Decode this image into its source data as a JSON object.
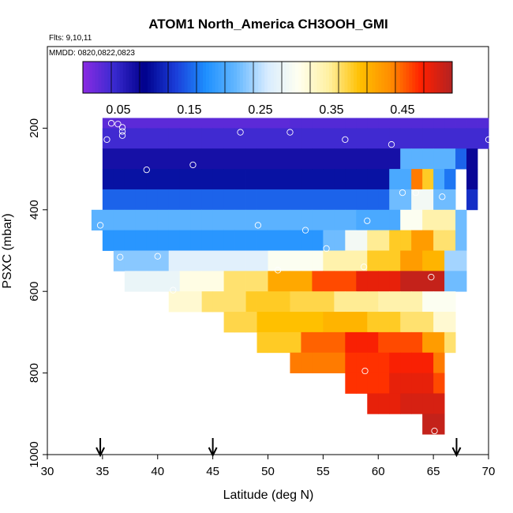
{
  "chart_data": {
    "type": "heatmap",
    "title": "ATOM1 North_America CH3OOH_GMI",
    "annotations": {
      "flights": "Flts: 9,10,11",
      "dates": "MMDD: 0820,0822,0823"
    },
    "xlabel": "Latitude (deg N)",
    "ylabel": "PSXC (mbar)",
    "xlim": [
      30,
      70
    ],
    "ylim": [
      1000,
      0
    ],
    "x_ticks": [
      30,
      35,
      40,
      45,
      50,
      55,
      60,
      65,
      70
    ],
    "y_ticks": [
      200,
      400,
      600,
      800,
      1000
    ],
    "colorbar": {
      "range": [
        0,
        0.52
      ],
      "tick_values": [
        0.05,
        0.15,
        0.25,
        0.35,
        0.45
      ],
      "tick_labels": [
        "0.05",
        "0.15",
        "0.25",
        "0.35",
        "0.45"
      ],
      "colors": [
        "#8a2be2",
        "#3a2ad0",
        "#00008b",
        "#1a3cd8",
        "#1e90ff",
        "#66b8ff",
        "#d8ecff",
        "#fffff0",
        "#fff0a0",
        "#ffc000",
        "#ff8c00",
        "#ff2000",
        "#b22222"
      ]
    },
    "lat_bin_deg": 1,
    "pressure_bin_mbar": 50,
    "rows": [
      {
        "p": 200,
        "segments": [
          [
            35,
            52,
            0.025
          ],
          [
            52,
            70,
            0.03
          ]
        ]
      },
      {
        "p": 225,
        "segments": [
          [
            35,
            70,
            0.04
          ]
        ]
      },
      {
        "p": 275,
        "segments": [
          [
            35,
            62,
            0.07
          ],
          [
            62,
            67,
            0.21
          ],
          [
            67,
            68,
            0.15
          ],
          [
            68,
            69,
            0.08
          ]
        ]
      },
      {
        "p": 325,
        "segments": [
          [
            35,
            61,
            0.1
          ],
          [
            61,
            63,
            0.2
          ],
          [
            63,
            64,
            0.44
          ],
          [
            64,
            65,
            0.38
          ],
          [
            65,
            66,
            0.2
          ],
          [
            66,
            67,
            0.16
          ],
          [
            68,
            69,
            0.08
          ]
        ]
      },
      {
        "p": 375,
        "segments": [
          [
            35,
            61,
            0.15
          ],
          [
            61,
            63,
            0.22
          ],
          [
            63,
            65,
            0.29
          ],
          [
            65,
            67,
            0.22
          ],
          [
            68,
            69,
            0.12
          ]
        ]
      },
      {
        "p": 425,
        "segments": [
          [
            34,
            58,
            0.21
          ],
          [
            58,
            62,
            0.2
          ],
          [
            62,
            64,
            0.3
          ],
          [
            64,
            67,
            0.34
          ],
          [
            67,
            68,
            0.22
          ]
        ]
      },
      {
        "p": 475,
        "segments": [
          [
            35,
            55,
            0.18
          ],
          [
            55,
            57,
            0.22
          ],
          [
            57,
            59,
            0.29
          ],
          [
            59,
            61,
            0.35
          ],
          [
            61,
            63,
            0.38
          ],
          [
            63,
            65,
            0.42
          ],
          [
            65,
            67,
            0.36
          ],
          [
            67,
            68,
            0.22
          ]
        ]
      },
      {
        "p": 525,
        "segments": [
          [
            36,
            41,
            0.23
          ],
          [
            41,
            50,
            0.27
          ],
          [
            50,
            55,
            0.3
          ],
          [
            55,
            59,
            0.34
          ],
          [
            59,
            62,
            0.38
          ],
          [
            62,
            64,
            0.42
          ],
          [
            64,
            66,
            0.4
          ],
          [
            66,
            68,
            0.24
          ]
        ]
      },
      {
        "p": 575,
        "segments": [
          [
            37,
            42,
            0.28
          ],
          [
            42,
            46,
            0.31
          ],
          [
            46,
            50,
            0.36
          ],
          [
            50,
            54,
            0.41
          ],
          [
            54,
            58,
            0.46
          ],
          [
            58,
            62,
            0.49
          ],
          [
            62,
            66,
            0.51
          ],
          [
            66,
            68,
            0.22
          ]
        ]
      },
      {
        "p": 625,
        "segments": [
          [
            41,
            44,
            0.32
          ],
          [
            44,
            48,
            0.36
          ],
          [
            48,
            52,
            0.38
          ],
          [
            52,
            56,
            0.37
          ],
          [
            56,
            60,
            0.35
          ],
          [
            60,
            64,
            0.34
          ],
          [
            64,
            67,
            0.3
          ]
        ]
      },
      {
        "p": 675,
        "segments": [
          [
            46,
            49,
            0.37
          ],
          [
            49,
            55,
            0.39
          ],
          [
            55,
            59,
            0.4
          ],
          [
            59,
            62,
            0.38
          ],
          [
            62,
            65,
            0.36
          ],
          [
            65,
            67,
            0.32
          ]
        ]
      },
      {
        "p": 725,
        "segments": [
          [
            49,
            53,
            0.38
          ],
          [
            53,
            57,
            0.45
          ],
          [
            57,
            60,
            0.48
          ],
          [
            60,
            64,
            0.46
          ],
          [
            64,
            66,
            0.42
          ],
          [
            66,
            67,
            0.36
          ]
        ]
      },
      {
        "p": 775,
        "segments": [
          [
            52,
            57,
            0.44
          ],
          [
            57,
            61,
            0.47
          ],
          [
            61,
            65,
            0.48
          ],
          [
            65,
            66,
            0.44
          ]
        ]
      },
      {
        "p": 825,
        "segments": [
          [
            57,
            61,
            0.47
          ],
          [
            61,
            65,
            0.49
          ],
          [
            65,
            66,
            0.46
          ]
        ]
      },
      {
        "p": 875,
        "segments": [
          [
            59,
            62,
            0.49
          ],
          [
            62,
            66,
            0.5
          ]
        ]
      },
      {
        "p": 925,
        "segments": [
          [
            64,
            66,
            0.51
          ]
        ]
      }
    ],
    "observations": [
      [
        35.8,
        188
      ],
      [
        36.4,
        190
      ],
      [
        36.8,
        198
      ],
      [
        36.8,
        208
      ],
      [
        36.8,
        218
      ],
      [
        35.4,
        228
      ],
      [
        47.5,
        210
      ],
      [
        52,
        210
      ],
      [
        57,
        228
      ],
      [
        61.2,
        240
      ],
      [
        70,
        228
      ],
      [
        39,
        302
      ],
      [
        43.2,
        290
      ],
      [
        62.2,
        358
      ],
      [
        63.4,
        358
      ],
      [
        65.8,
        368
      ],
      [
        59,
        427
      ],
      [
        34.8,
        438
      ],
      [
        49.1,
        438
      ],
      [
        53.4,
        450
      ],
      [
        55.3,
        495
      ],
      [
        36.6,
        516
      ],
      [
        40,
        514
      ],
      [
        50.9,
        548
      ],
      [
        58.7,
        540
      ],
      [
        64.8,
        565
      ],
      [
        41.4,
        597
      ],
      [
        58.8,
        795
      ],
      [
        65.1,
        942
      ]
    ],
    "flight_markers_deg": [
      34.8,
      45,
      67.1
    ]
  }
}
